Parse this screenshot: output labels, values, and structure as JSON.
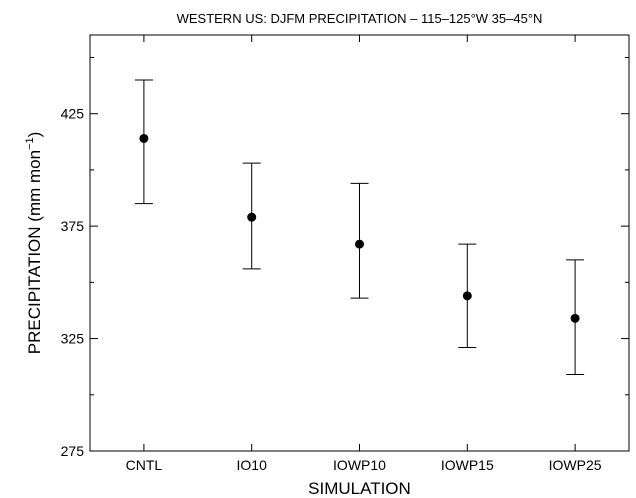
{
  "chart_data": {
    "type": "scatter",
    "title": "WESTERN US: DJFM PRECIPITATION – 115–125°W 35–45°N",
    "xlabel": "SIMULATION",
    "ylabel_main": "PRECIPITATION (mm mon",
    "ylabel_sup": "−1",
    "ylabel_close": ")",
    "categories": [
      "CNTL",
      "IO10",
      "IOWP10",
      "IOWP15",
      "IOWP25"
    ],
    "series": [
      {
        "values": [
          414,
          379,
          367,
          344,
          334
        ],
        "error_low": [
          385,
          356,
          343,
          321,
          309
        ],
        "error_high": [
          440,
          403,
          394,
          367,
          360
        ]
      }
    ],
    "ylim": [
      275,
      460
    ],
    "yticks_major": [
      275,
      325,
      375,
      425
    ],
    "yticks_minor": [
      300,
      350,
      400,
      450
    ],
    "grid": false,
    "legend": "none",
    "colors": {
      "marker": "#000000",
      "axis": "#000000"
    }
  }
}
